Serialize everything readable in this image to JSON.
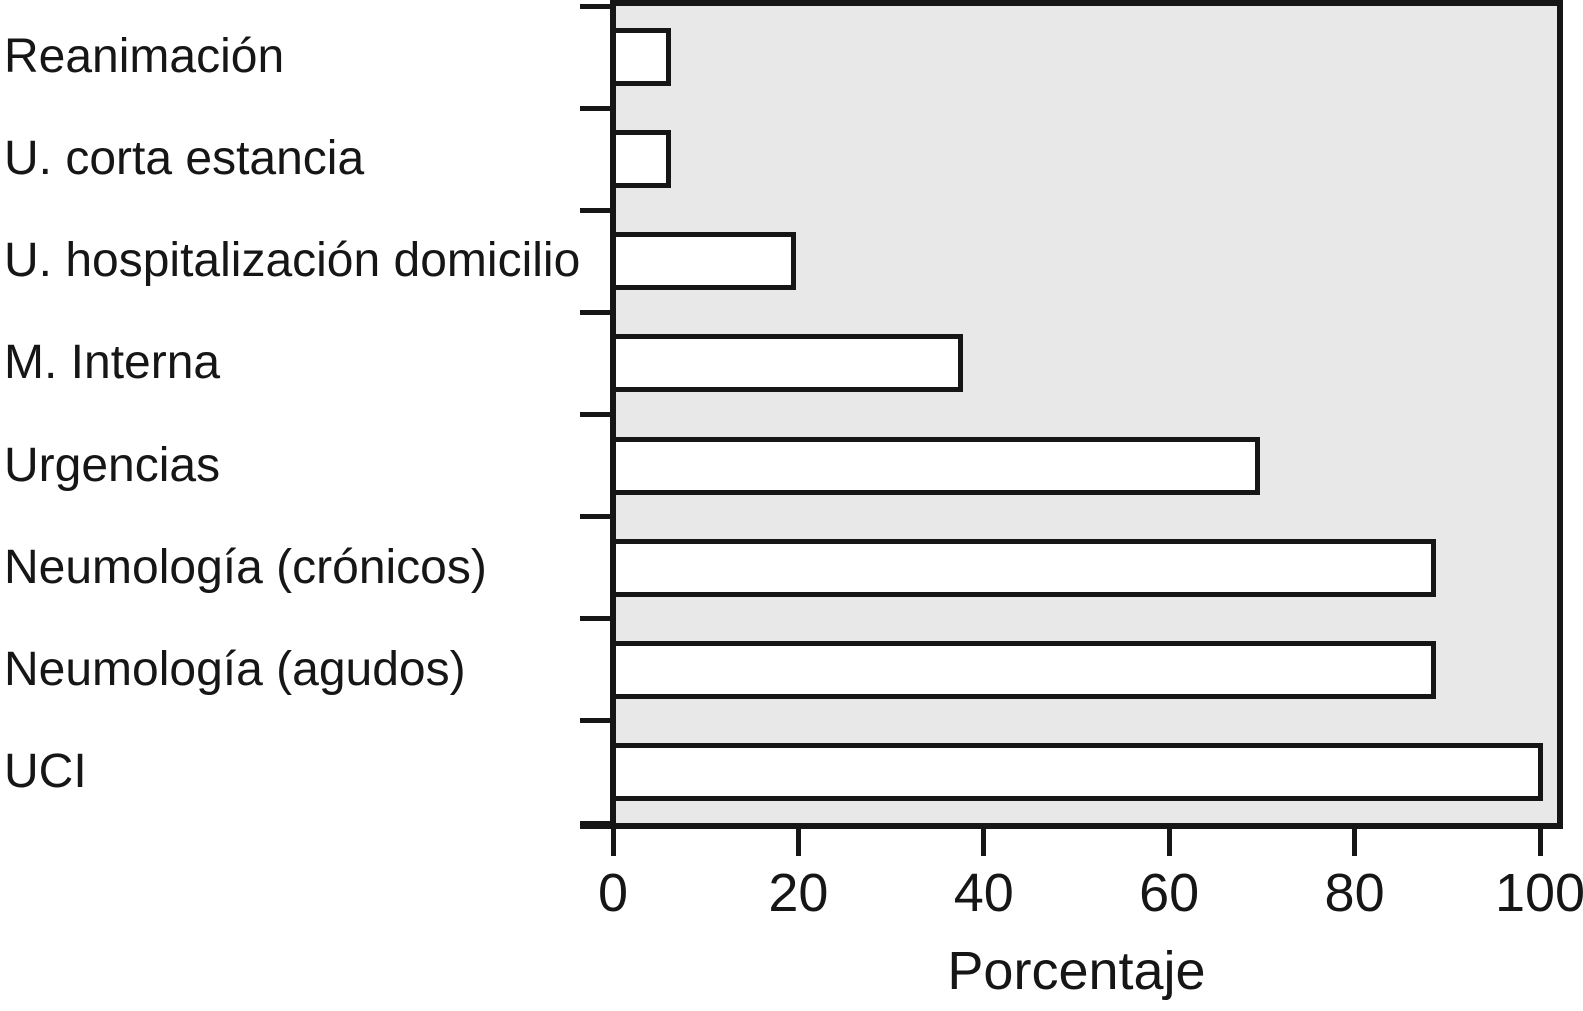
{
  "figure": {
    "background_color": "#ffffff",
    "plot_background_color": "#e8e8e8",
    "line_color": "#161616",
    "bar_fill_color": "#ffffff"
  },
  "chart_data": {
    "type": "bar",
    "orientation": "horizontal",
    "title": "",
    "xlabel": "Porcentaje",
    "ylabel": "",
    "categories": [
      "Reanimación",
      "U. corta estancia",
      "U. hospitalización domicilio",
      "M. Interna",
      "Urgencias",
      "Neumología (crónicos)",
      "Neumología (agudos)",
      "UCI"
    ],
    "values": [
      6,
      6,
      19.5,
      37.5,
      69.5,
      88.5,
      88.5,
      100
    ],
    "xlim": [
      0,
      100
    ],
    "xticks": [
      0,
      20,
      40,
      60,
      80,
      100
    ],
    "grid": false,
    "legend": null
  }
}
